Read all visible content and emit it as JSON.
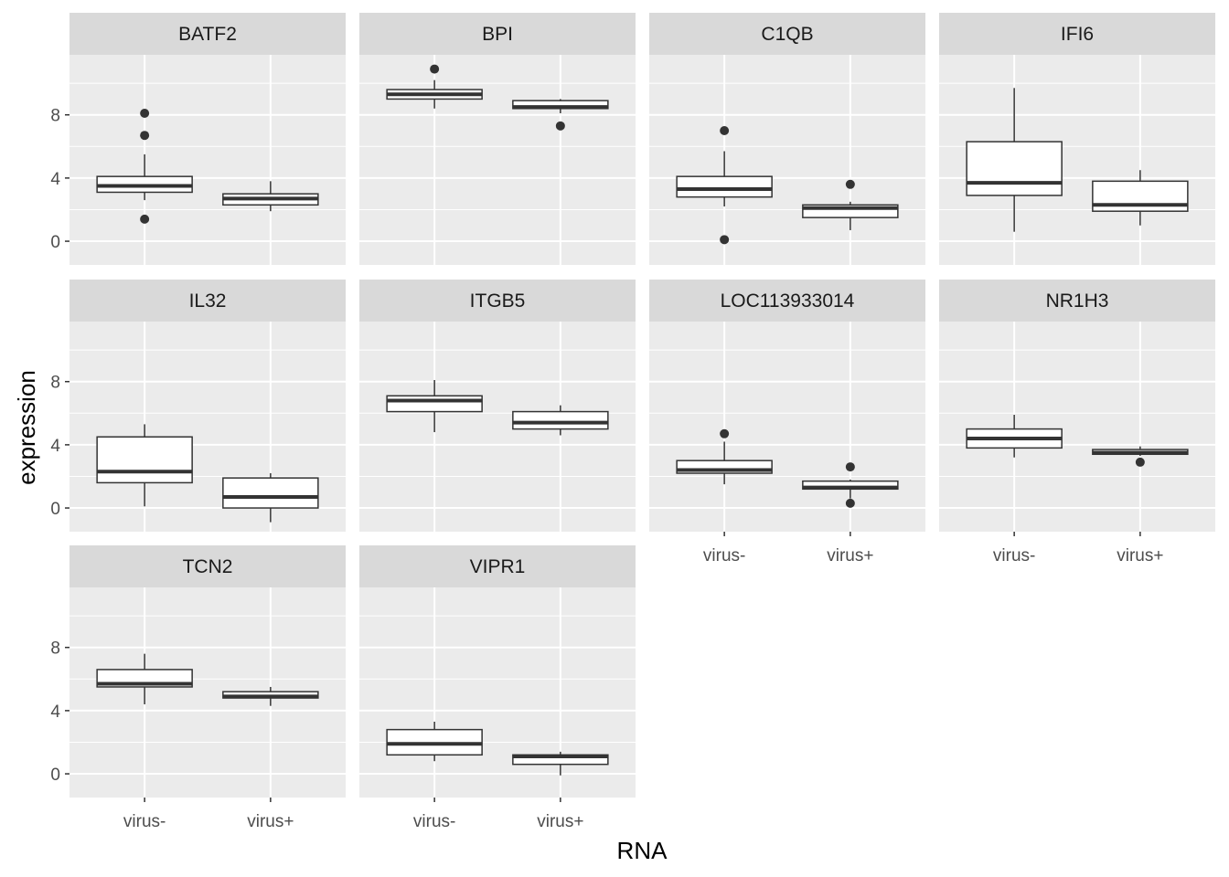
{
  "chart_data": {
    "type": "boxplot",
    "xlabel": "RNA",
    "ylabel": "expression",
    "categories": [
      "virus-",
      "virus+"
    ],
    "ylim": [
      -1.5,
      11.8
    ],
    "yticks": [
      0,
      4,
      8
    ],
    "colors": {
      "panel_bg": "#EBEBEB",
      "strip_bg": "#D9D9D9",
      "grid": "#FFFFFF",
      "box_fill": "#FFFFFF",
      "box_line": "#333333",
      "tick_label": "#4D4D4D"
    },
    "facets": [
      {
        "title": "BATF2",
        "boxes": [
          {
            "group": "virus-",
            "lower": 2.6,
            "q1": 3.1,
            "median": 3.5,
            "q3": 4.1,
            "upper": 5.5,
            "outliers": [
              8.1,
              6.7,
              1.4
            ]
          },
          {
            "group": "virus+",
            "lower": 1.9,
            "q1": 2.3,
            "median": 2.7,
            "q3": 3.0,
            "upper": 3.8,
            "outliers": []
          }
        ]
      },
      {
        "title": "BPI",
        "boxes": [
          {
            "group": "virus-",
            "lower": 8.4,
            "q1": 9.0,
            "median": 9.3,
            "q3": 9.6,
            "upper": 10.2,
            "outliers": [
              10.9
            ]
          },
          {
            "group": "virus+",
            "lower": 8.1,
            "q1": 8.4,
            "median": 8.5,
            "q3": 8.9,
            "upper": 9.0,
            "outliers": [
              7.3
            ]
          }
        ]
      },
      {
        "title": "C1QB",
        "boxes": [
          {
            "group": "virus-",
            "lower": 2.2,
            "q1": 2.8,
            "median": 3.3,
            "q3": 4.1,
            "upper": 5.7,
            "outliers": [
              7.0,
              0.1
            ]
          },
          {
            "group": "virus+",
            "lower": 0.7,
            "q1": 1.5,
            "median": 2.1,
            "q3": 2.3,
            "upper": 2.5,
            "outliers": [
              3.6
            ]
          }
        ]
      },
      {
        "title": "IFI6",
        "boxes": [
          {
            "group": "virus-",
            "lower": 0.6,
            "q1": 2.9,
            "median": 3.7,
            "q3": 6.3,
            "upper": 9.7,
            "outliers": []
          },
          {
            "group": "virus+",
            "lower": 1.0,
            "q1": 1.9,
            "median": 2.3,
            "q3": 3.8,
            "upper": 4.5,
            "outliers": []
          }
        ]
      },
      {
        "title": "IL32",
        "boxes": [
          {
            "group": "virus-",
            "lower": 0.1,
            "q1": 1.6,
            "median": 2.3,
            "q3": 4.5,
            "upper": 5.3,
            "outliers": []
          },
          {
            "group": "virus+",
            "lower": -0.9,
            "q1": 0.0,
            "median": 0.7,
            "q3": 1.9,
            "upper": 2.2,
            "outliers": []
          }
        ]
      },
      {
        "title": "ITGB5",
        "boxes": [
          {
            "group": "virus-",
            "lower": 4.8,
            "q1": 6.1,
            "median": 6.8,
            "q3": 7.1,
            "upper": 8.1,
            "outliers": []
          },
          {
            "group": "virus+",
            "lower": 4.6,
            "q1": 5.0,
            "median": 5.4,
            "q3": 6.1,
            "upper": 6.5,
            "outliers": []
          }
        ]
      },
      {
        "title": "LOC113933014",
        "boxes": [
          {
            "group": "virus-",
            "lower": 1.5,
            "q1": 2.2,
            "median": 2.4,
            "q3": 3.0,
            "upper": 4.2,
            "outliers": [
              4.7
            ]
          },
          {
            "group": "virus+",
            "lower": 0.6,
            "q1": 1.2,
            "median": 1.3,
            "q3": 1.7,
            "upper": 1.8,
            "outliers": [
              2.6,
              0.3
            ]
          }
        ]
      },
      {
        "title": "NR1H3",
        "boxes": [
          {
            "group": "virus-",
            "lower": 3.2,
            "q1": 3.8,
            "median": 4.4,
            "q3": 5.0,
            "upper": 5.9,
            "outliers": []
          },
          {
            "group": "virus+",
            "lower": 3.3,
            "q1": 3.4,
            "median": 3.5,
            "q3": 3.7,
            "upper": 3.9,
            "outliers": [
              2.9
            ]
          }
        ]
      },
      {
        "title": "TCN2",
        "boxes": [
          {
            "group": "virus-",
            "lower": 4.4,
            "q1": 5.5,
            "median": 5.7,
            "q3": 6.6,
            "upper": 7.6,
            "outliers": []
          },
          {
            "group": "virus+",
            "lower": 4.3,
            "q1": 4.8,
            "median": 4.9,
            "q3": 5.2,
            "upper": 5.5,
            "outliers": []
          }
        ]
      },
      {
        "title": "VIPR1",
        "boxes": [
          {
            "group": "virus-",
            "lower": 0.8,
            "q1": 1.2,
            "median": 1.9,
            "q3": 2.8,
            "upper": 3.3,
            "outliers": []
          },
          {
            "group": "virus+",
            "lower": -0.1,
            "q1": 0.6,
            "median": 1.1,
            "q3": 1.2,
            "upper": 1.4,
            "outliers": []
          }
        ]
      }
    ]
  }
}
